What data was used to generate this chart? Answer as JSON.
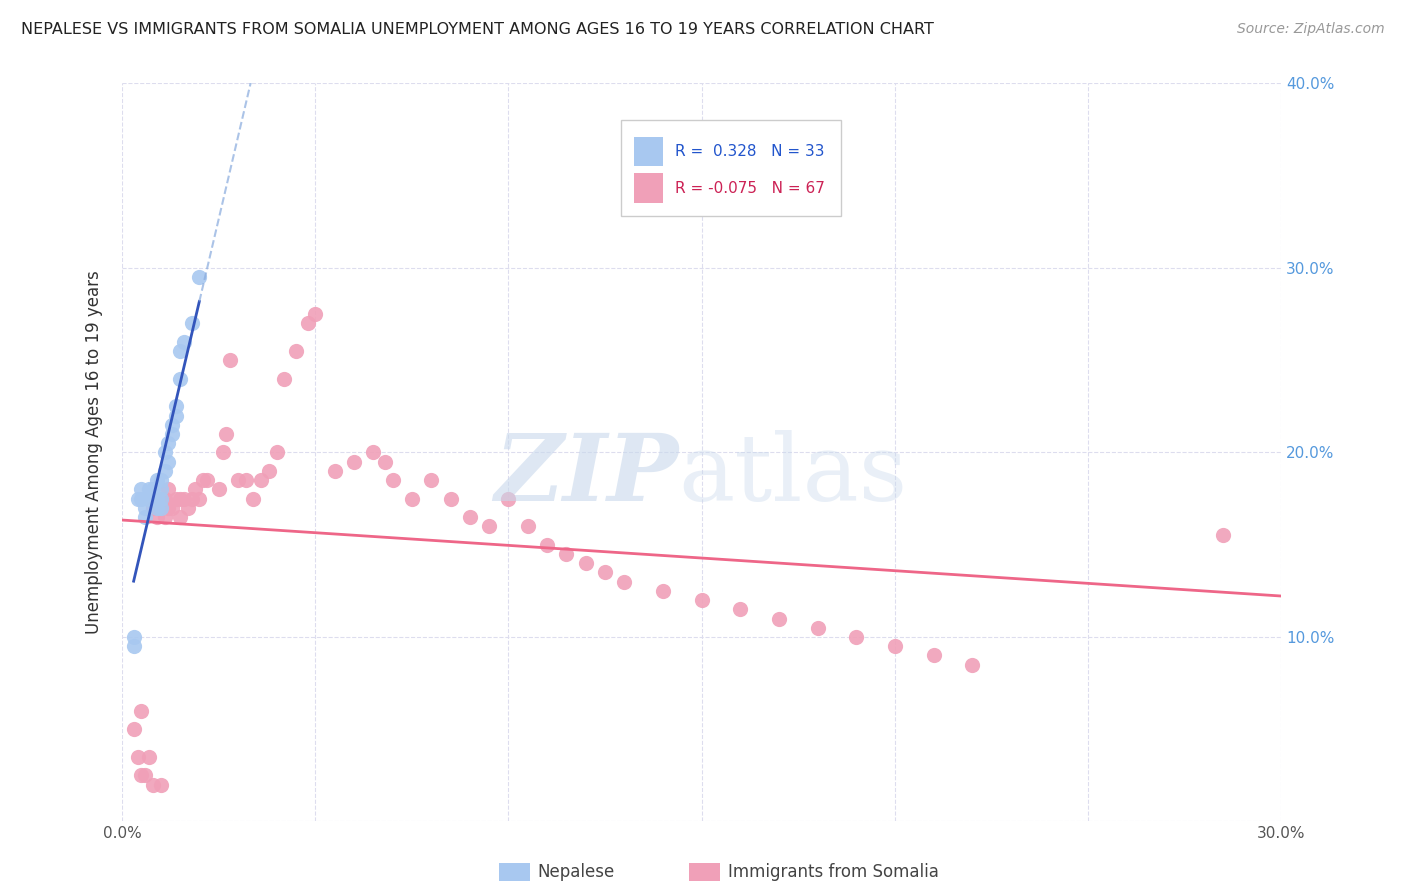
{
  "title": "NEPALESE VS IMMIGRANTS FROM SOMALIA UNEMPLOYMENT AMONG AGES 16 TO 19 YEARS CORRELATION CHART",
  "source": "Source: ZipAtlas.com",
  "ylabel": "Unemployment Among Ages 16 to 19 years",
  "xlim": [
    0.0,
    0.3
  ],
  "ylim": [
    0.0,
    0.4
  ],
  "blue_color": "#a8c8f0",
  "pink_color": "#f0a0b8",
  "blue_line_color": "#3355bb",
  "blue_dash_color": "#88aadd",
  "pink_line_color": "#ee6688",
  "nepalese_x": [
    0.003,
    0.003,
    0.004,
    0.005,
    0.005,
    0.006,
    0.006,
    0.007,
    0.007,
    0.007,
    0.008,
    0.008,
    0.008,
    0.009,
    0.009,
    0.009,
    0.01,
    0.01,
    0.01,
    0.01,
    0.011,
    0.011,
    0.012,
    0.012,
    0.013,
    0.013,
    0.014,
    0.014,
    0.015,
    0.015,
    0.016,
    0.018,
    0.02
  ],
  "nepalese_y": [
    0.1,
    0.095,
    0.175,
    0.175,
    0.18,
    0.165,
    0.17,
    0.175,
    0.175,
    0.18,
    0.175,
    0.18,
    0.175,
    0.17,
    0.175,
    0.185,
    0.17,
    0.175,
    0.18,
    0.185,
    0.19,
    0.2,
    0.195,
    0.205,
    0.21,
    0.215,
    0.22,
    0.225,
    0.24,
    0.255,
    0.26,
    0.27,
    0.295
  ],
  "somalia_x": [
    0.003,
    0.004,
    0.005,
    0.005,
    0.006,
    0.007,
    0.008,
    0.008,
    0.009,
    0.01,
    0.01,
    0.011,
    0.011,
    0.012,
    0.012,
    0.013,
    0.014,
    0.015,
    0.015,
    0.016,
    0.017,
    0.018,
    0.019,
    0.02,
    0.021,
    0.022,
    0.025,
    0.026,
    0.027,
    0.028,
    0.03,
    0.032,
    0.034,
    0.036,
    0.038,
    0.04,
    0.042,
    0.045,
    0.048,
    0.05,
    0.055,
    0.06,
    0.065,
    0.068,
    0.07,
    0.075,
    0.08,
    0.085,
    0.09,
    0.095,
    0.1,
    0.105,
    0.11,
    0.115,
    0.12,
    0.125,
    0.13,
    0.14,
    0.15,
    0.16,
    0.17,
    0.18,
    0.19,
    0.2,
    0.21,
    0.22,
    0.285
  ],
  "somalia_y": [
    0.05,
    0.035,
    0.025,
    0.06,
    0.025,
    0.035,
    0.02,
    0.17,
    0.165,
    0.02,
    0.175,
    0.165,
    0.175,
    0.17,
    0.18,
    0.17,
    0.175,
    0.165,
    0.175,
    0.175,
    0.17,
    0.175,
    0.18,
    0.175,
    0.185,
    0.185,
    0.18,
    0.2,
    0.21,
    0.25,
    0.185,
    0.185,
    0.175,
    0.185,
    0.19,
    0.2,
    0.24,
    0.255,
    0.27,
    0.275,
    0.19,
    0.195,
    0.2,
    0.195,
    0.185,
    0.175,
    0.185,
    0.175,
    0.165,
    0.16,
    0.175,
    0.16,
    0.15,
    0.145,
    0.14,
    0.135,
    0.13,
    0.125,
    0.12,
    0.115,
    0.11,
    0.105,
    0.1,
    0.095,
    0.09,
    0.085,
    0.155
  ]
}
